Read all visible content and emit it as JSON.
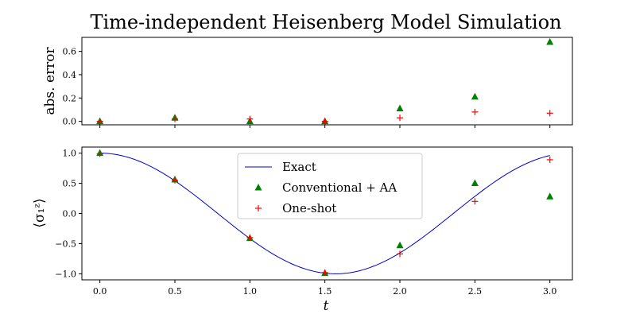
{
  "chart_data": {
    "title": "Time-independent Heisenberg Model Simulation",
    "xlabel": "t",
    "x_ticks": [
      "0.0",
      "0.5",
      "1.0",
      "1.5",
      "2.0",
      "2.5",
      "3.0"
    ],
    "xlim": [
      -0.12,
      3.15
    ],
    "panels": [
      {
        "type": "scatter",
        "ylabel": "abs. error",
        "ylim": [
          -0.03,
          0.72
        ],
        "y_ticks": [
          0.0,
          0.2,
          0.4,
          0.6
        ],
        "y_tick_labels": [
          "0.0",
          "0.2",
          "0.4",
          "0.6"
        ],
        "series": [
          {
            "name": "Conventional + AA",
            "marker": "triangle",
            "color": "#008000",
            "points": [
              [
                0.0,
                0.0
              ],
              [
                0.5,
                0.03
              ],
              [
                1.0,
                0.0
              ],
              [
                1.5,
                0.0
              ],
              [
                2.0,
                0.11
              ],
              [
                2.5,
                0.21
              ],
              [
                3.0,
                0.68
              ]
            ]
          },
          {
            "name": "One-shot",
            "marker": "plus",
            "color": "#ff0000",
            "points": [
              [
                0.0,
                0.0
              ],
              [
                0.5,
                0.02
              ],
              [
                1.0,
                0.02
              ],
              [
                1.5,
                0.0
              ],
              [
                2.0,
                0.03
              ],
              [
                2.5,
                0.08
              ],
              [
                3.0,
                0.07
              ]
            ]
          }
        ]
      },
      {
        "type": "line+scatter",
        "ylabel": "⟨σ₁ᶻ⟩",
        "ylim": [
          -1.1,
          1.1
        ],
        "y_ticks": [
          -1.0,
          -0.5,
          0.0,
          0.5,
          1.0
        ],
        "y_tick_labels": [
          "−1.0",
          "−0.5",
          "0.0",
          "0.5",
          "1.0"
        ],
        "series": [
          {
            "name": "Exact",
            "marker": "line",
            "color": "#0000cc",
            "function": "cos(2t)",
            "x_range": [
              0,
              3
            ]
          },
          {
            "name": "Conventional + AA",
            "marker": "triangle",
            "color": "#008000",
            "points": [
              [
                0.0,
                1.0
              ],
              [
                0.5,
                0.56
              ],
              [
                1.0,
                -0.41
              ],
              [
                1.5,
                -0.99
              ],
              [
                2.0,
                -0.53
              ],
              [
                2.5,
                0.5
              ],
              [
                3.0,
                0.28
              ]
            ]
          },
          {
            "name": "One-shot",
            "marker": "plus",
            "color": "#ff0000",
            "points": [
              [
                0.0,
                0.99
              ],
              [
                0.5,
                0.55
              ],
              [
                1.0,
                -0.4
              ],
              [
                1.5,
                -0.98
              ],
              [
                2.0,
                -0.67
              ],
              [
                2.5,
                0.2
              ],
              [
                3.0,
                0.89
              ]
            ]
          }
        ],
        "legend": {
          "position": "top-center",
          "entries": [
            "Exact",
            "Conventional + AA",
            "One-shot"
          ]
        }
      }
    ]
  }
}
